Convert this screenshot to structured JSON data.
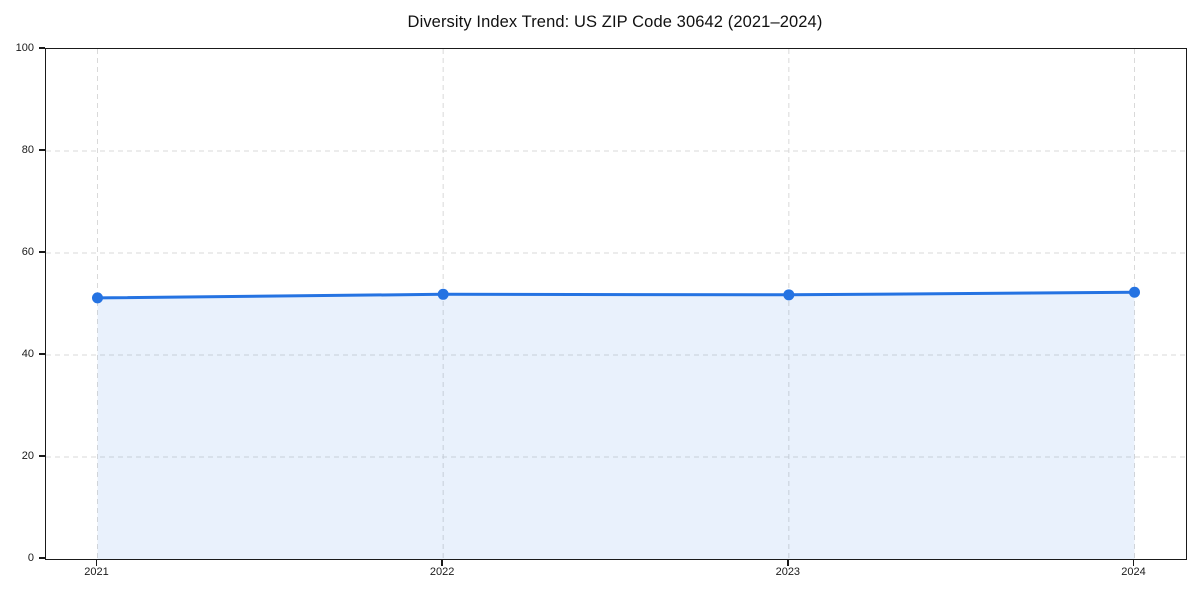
{
  "figure": {
    "background": "#ffffff"
  },
  "chart_data": {
    "type": "area",
    "title": "Diversity Index Trend: US ZIP Code 30642 (2021–2024)",
    "x": [
      "2021",
      "2022",
      "2023",
      "2024"
    ],
    "series": [
      {
        "name": "Diversity Index",
        "values": [
          51.2,
          51.9,
          51.8,
          52.3
        ]
      }
    ],
    "xlabel": "",
    "ylabel": "",
    "ylim": [
      0,
      100
    ],
    "yticks": [
      0,
      20,
      40,
      60,
      80,
      100
    ],
    "grid": "dashed-both-axes",
    "legend": "none",
    "marker": "circle",
    "colors": {
      "line": "#2573e2",
      "marker": "#2573e2",
      "fill": "rgba(37, 115, 226, 0.10)",
      "grid": "#d9d9d9",
      "spine": "#1a1a1a",
      "tick_label": "#1a1a1a",
      "title": "#111111",
      "background": "#ffffff"
    }
  }
}
